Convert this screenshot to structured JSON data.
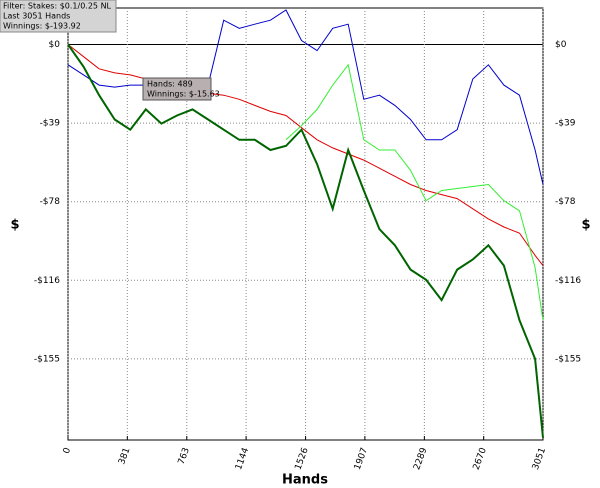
{
  "chart_data": {
    "type": "line",
    "header": [
      "Filter: Stakes: $0.1/0.25 NL",
      "Last  3051 Hands",
      "Winnings: $-193.92"
    ],
    "tooltip": [
      "Hands: 489",
      "Winnings: $-15.63"
    ],
    "x_label": "Hands",
    "y_label": "$",
    "x": [
      0,
      100,
      200,
      300,
      400,
      500,
      600,
      700,
      800,
      900,
      1000,
      1100,
      1200,
      1300,
      1400,
      1500,
      1600,
      1700,
      1800,
      1900,
      2000,
      2100,
      2200,
      2300,
      2400,
      2500,
      2600,
      2700,
      2800,
      2900,
      3000,
      3051
    ],
    "xlim": [
      0,
      3051
    ],
    "xticks": [
      0,
      381,
      763,
      1144,
      1526,
      1907,
      2289,
      2670,
      3051
    ],
    "ylim": [
      -195,
      18
    ],
    "yticks": [
      {
        "value": 0,
        "label": "$0"
      },
      {
        "value": -38.75,
        "label": "-$39"
      },
      {
        "value": -77.5,
        "label": "-$78"
      },
      {
        "value": -116.25,
        "label": "-$116"
      },
      {
        "value": -155,
        "label": "-$155"
      }
    ],
    "grid": true,
    "series": [
      {
        "color": "#0000cc",
        "values": [
          -10,
          -15,
          -20,
          -21,
          -20,
          -20,
          -19,
          -18,
          -20,
          -20,
          12,
          8,
          10,
          12,
          17,
          2,
          -3,
          8,
          10,
          -27,
          -25,
          -30,
          -37,
          -47,
          -47,
          -42,
          -17,
          -10,
          -20,
          -25,
          -52,
          -69
        ]
      },
      {
        "color": "#e00000",
        "values": [
          0,
          -6,
          -12,
          -14,
          -15,
          -17,
          -18,
          -20,
          -22,
          -24,
          -25,
          -27,
          -30,
          -33,
          -35,
          -41,
          -47,
          -51,
          -54,
          -57,
          -61,
          -65,
          -69,
          -72,
          -74,
          -76,
          -81,
          -86,
          -90,
          -93,
          -104,
          -109
        ]
      },
      {
        "color": "#33ee33",
        "values": [
          null,
          null,
          null,
          null,
          null,
          null,
          null,
          null,
          null,
          null,
          null,
          null,
          null,
          null,
          -47,
          -40,
          -32,
          -20,
          -10,
          -47,
          -52,
          -52,
          -62,
          -77,
          -72,
          -71,
          -70,
          -69,
          -77,
          -82,
          -110,
          -136
        ]
      },
      {
        "color": "#006400",
        "values": [
          0,
          -11,
          -25,
          -37,
          -42,
          -32,
          -39,
          -35,
          -32,
          -37,
          -42,
          -47,
          -47,
          -52,
          -50,
          -42,
          -59,
          -81,
          -52,
          -72,
          -91,
          -99,
          -111,
          -116,
          -126,
          -111,
          -106,
          -99,
          -109,
          -136,
          -155,
          -193.92
        ]
      }
    ]
  }
}
